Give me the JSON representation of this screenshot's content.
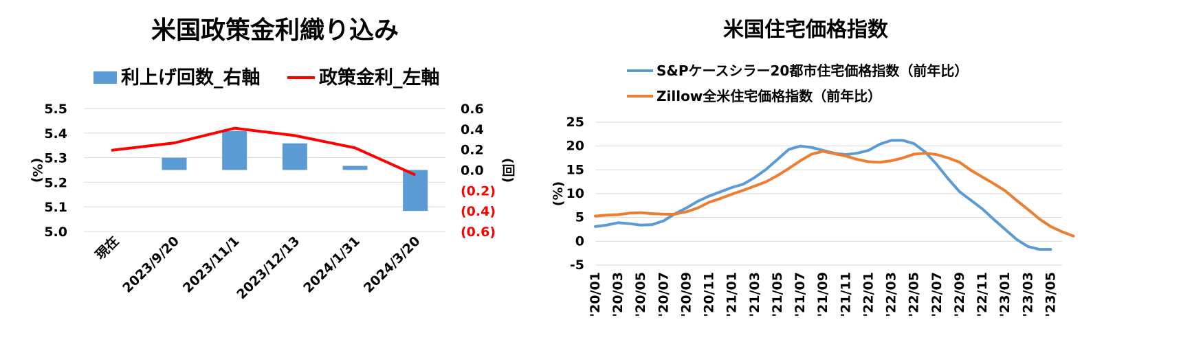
{
  "chart_data": [
    {
      "type": "bar+line",
      "title": "米国政策金利織り込み",
      "legend": [
        "利上げ回数_右軸",
        "政策金利_左軸"
      ],
      "legend_position": "top",
      "categories": [
        "現在",
        "2023/9/20",
        "2023/11/1",
        "2023/12/13",
        "2024/1/31",
        "2024/3/20"
      ],
      "left_axis": {
        "label": "(%)",
        "ticks": [
          "5.5",
          "5.4",
          "5.3",
          "5.2",
          "5.1",
          "5.0"
        ],
        "ylim": [
          5.0,
          5.5
        ]
      },
      "right_axis": {
        "label": "(回)",
        "ticks": [
          "0.6",
          "0.4",
          "0.2",
          "0.0",
          "(0.2)",
          "(0.4)",
          "(0.6)"
        ],
        "ylim": [
          -0.6,
          0.6
        ]
      },
      "series": [
        {
          "name": "利上げ回数_右軸",
          "kind": "bar",
          "axis": "right",
          "color": "#5b9bd5",
          "values": [
            null,
            0.12,
            0.38,
            0.26,
            0.04,
            -0.4
          ]
        },
        {
          "name": "政策金利_左軸",
          "kind": "line",
          "axis": "left",
          "color": "#ff0000",
          "values": [
            5.33,
            5.36,
            5.42,
            5.39,
            5.34,
            5.23
          ]
        }
      ],
      "grid": true
    },
    {
      "type": "line",
      "title": "米国住宅価格指数",
      "legend": [
        "S&Pケースシラー20都市住宅価格指数（前年比）",
        "Zillow全米住宅価格指数（前年比）"
      ],
      "legend_position": "top",
      "ylabel": "(%)",
      "ylim": [
        -5,
        25
      ],
      "y_ticks": [
        "25",
        "20",
        "15",
        "10",
        "5",
        "0",
        "-5"
      ],
      "x_ticks": [
        "'20/01",
        "'20/03",
        "'20/05",
        "'20/07",
        "'20/09",
        "'20/11",
        "'21/01",
        "'21/03",
        "'21/05",
        "'21/07",
        "'21/09",
        "'21/11",
        "'22/01",
        "'22/03",
        "'22/05",
        "'22/07",
        "'22/09",
        "'22/11",
        "'23/01",
        "'23/03",
        "'23/05"
      ],
      "series": [
        {
          "name": "S&Pケースシラー20都市住宅価格指数（前年比）",
          "color": "#5b9bd5",
          "values": [
            3.1,
            3.4,
            3.9,
            3.7,
            3.4,
            3.5,
            4.3,
            5.8,
            7.0,
            8.4,
            9.5,
            10.4,
            11.3,
            12.0,
            13.4,
            15.1,
            17.2,
            19.3,
            20.0,
            19.7,
            19.1,
            18.5,
            18.2,
            18.5,
            19.1,
            20.4,
            21.2,
            21.2,
            20.5,
            18.7,
            16.1,
            13.1,
            10.4,
            8.6,
            6.8,
            4.6,
            2.5,
            0.4,
            -1.1,
            -1.7,
            -1.7
          ]
        },
        {
          "name": "Zillow全米住宅価格指数（前年比）",
          "color": "#ed7d31",
          "values": [
            5.3,
            5.5,
            5.6,
            5.9,
            6.0,
            5.8,
            5.7,
            5.7,
            6.2,
            7.0,
            8.2,
            9.0,
            9.9,
            10.7,
            11.6,
            12.5,
            13.8,
            15.3,
            16.9,
            18.3,
            18.9,
            18.4,
            17.9,
            17.2,
            16.7,
            16.6,
            16.9,
            17.5,
            18.3,
            18.5,
            18.2,
            17.5,
            16.6,
            14.9,
            13.5,
            12.1,
            10.6,
            8.6,
            6.7,
            4.7,
            3.1,
            2.0,
            1.1
          ]
        }
      ],
      "grid": true
    }
  ]
}
